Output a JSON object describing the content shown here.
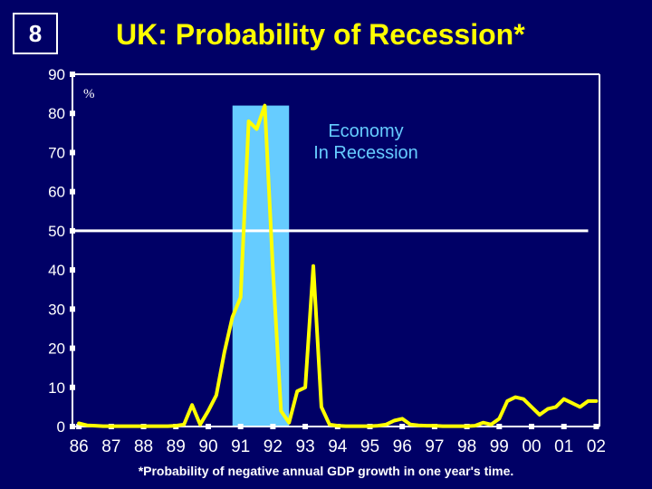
{
  "slide": {
    "number": "8",
    "title": "UK: Probability of Recession*",
    "footnote": "*Probability of negative annual GDP growth in one year's time."
  },
  "chart_data": {
    "type": "line",
    "title": "UK: Probability of Recession*",
    "ylabel": "%",
    "ylim": [
      0,
      90
    ],
    "yticks": [
      0,
      10,
      20,
      30,
      40,
      50,
      60,
      70,
      80,
      90
    ],
    "xlim": [
      1985.8,
      2002.1
    ],
    "xtick_values": [
      1986,
      1987,
      1988,
      1989,
      1990,
      1991,
      1992,
      1993,
      1994,
      1995,
      1996,
      1997,
      1998,
      1999,
      2000,
      2001,
      2002
    ],
    "xtick_labels": [
      "86",
      "87",
      "88",
      "89",
      "90",
      "91",
      "92",
      "93",
      "94",
      "95",
      "96",
      "97",
      "98",
      "99",
      "00",
      "01",
      "02"
    ],
    "threshold": 50,
    "shaded_region": {
      "x_start": 1990.75,
      "x_end": 1992.5,
      "label_line1": "Economy",
      "label_line2": "In Recession"
    },
    "series": [
      {
        "x": [
          1986,
          1986.25,
          1986.5,
          1986.75,
          1987,
          1987.25,
          1987.5,
          1987.75,
          1988,
          1988.25,
          1988.5,
          1988.75,
          1989,
          1989.25,
          1989.5,
          1989.75,
          1990,
          1990.25,
          1990.5,
          1990.75,
          1991,
          1991.25,
          1991.5,
          1991.75,
          1992,
          1992.25,
          1992.5,
          1992.75,
          1993,
          1993.25,
          1993.5,
          1993.75,
          1994,
          1994.25,
          1994.5,
          1994.75,
          1995,
          1995.25,
          1995.5,
          1995.75,
          1996,
          1996.25,
          1996.5,
          1996.75,
          1997,
          1997.25,
          1997.5,
          1997.75,
          1998,
          1998.25,
          1998.5,
          1998.75,
          1999,
          1999.25,
          1999.5,
          1999.75,
          2000,
          2000.25,
          2000.5,
          2000.75,
          2001,
          2001.25,
          2001.5,
          2001.75,
          2002
        ],
        "values": [
          0.8,
          0.3,
          0.2,
          0.1,
          0.1,
          0.1,
          0.1,
          0.1,
          0.1,
          0.1,
          0.1,
          0.1,
          0.2,
          0.5,
          5.5,
          0.5,
          4.0,
          8.0,
          19.0,
          28.0,
          33.0,
          78.0,
          76.0,
          82.0,
          40.0,
          4.0,
          1.0,
          9.0,
          10.0,
          41.0,
          5.0,
          0.5,
          0.2,
          0.1,
          0.1,
          0.1,
          0.1,
          0.2,
          0.5,
          1.5,
          2.0,
          0.5,
          0.3,
          0.2,
          0.2,
          0.1,
          0.1,
          0.1,
          0.1,
          0.2,
          1.0,
          0.5,
          2.0,
          6.5,
          7.5,
          7.0,
          5.0,
          3.0,
          4.5,
          5.0,
          7.0,
          6.0,
          5.0,
          6.5,
          6.5
        ]
      }
    ],
    "grid": false,
    "colors": {
      "background": "#000066",
      "line": "#ffff00",
      "shade": "#66ccff",
      "axis": "#ffffff",
      "threshold": "#ffffff"
    }
  }
}
